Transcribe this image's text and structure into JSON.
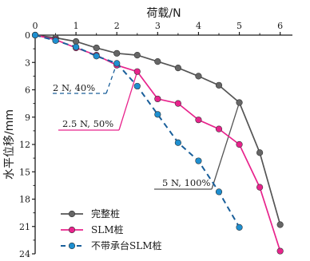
{
  "chart_data": {
    "type": "line",
    "xlabel": "荷载/N",
    "ylabel": "水平位移/mm",
    "x_axis_position": "top",
    "y_inverted": true,
    "xlim": [
      0,
      6.3
    ],
    "ylim": [
      0,
      24
    ],
    "x_ticks": [
      "0",
      "1",
      "2",
      "3",
      "4",
      "5",
      "6"
    ],
    "y_ticks": [
      "0",
      "3",
      "6",
      "9",
      "12",
      "15",
      "18",
      "21",
      "24"
    ],
    "grid": false,
    "legend_position": "bottom-left",
    "series": [
      {
        "name": "完整桩",
        "color": "#555555",
        "line_style": "solid",
        "marker_color": "#666666",
        "x": [
          0,
          0.5,
          1.0,
          1.5,
          2.0,
          2.5,
          3.0,
          3.5,
          4.0,
          4.5,
          5.0,
          5.5,
          6.0
        ],
        "y": [
          0,
          0.3,
          0.7,
          1.4,
          2.0,
          2.2,
          2.9,
          3.6,
          4.5,
          5.5,
          7.4,
          12.9,
          20.8
        ]
      },
      {
        "name": "SLM桩",
        "color": "#e8238c",
        "line_style": "solid",
        "marker_color": "#e8238c",
        "x": [
          0,
          0.5,
          1.0,
          1.5,
          2.0,
          2.5,
          3.0,
          3.5,
          4.0,
          4.5,
          5.0,
          5.5,
          6.0
        ],
        "y": [
          0,
          0.5,
          1.4,
          2.2,
          3.3,
          4.0,
          7.0,
          7.5,
          9.3,
          10.3,
          12.0,
          16.7,
          23.7
        ]
      },
      {
        "name": "不带承台SLM桩",
        "color": "#1a5f9a",
        "line_style": "dashed",
        "marker_color": "#1e8fd0",
        "x": [
          0,
          0.5,
          1.0,
          1.5,
          2.0,
          2.5,
          3.0,
          3.5,
          4.0,
          4.5,
          5.0
        ],
        "y": [
          0,
          0.6,
          1.3,
          2.3,
          3.1,
          5.6,
          8.7,
          11.8,
          13.8,
          17.2,
          21.1
        ]
      }
    ],
    "annotations": [
      {
        "text": "2 N, 40%",
        "point": [
          2.0,
          3.1
        ],
        "color": "#1a5f9a",
        "line_style": "dashed"
      },
      {
        "text": "2.5 N, 50%",
        "point": [
          2.5,
          4.0
        ],
        "color": "#e8238c",
        "line_style": "solid"
      },
      {
        "text": "5 N, 100%",
        "point": [
          5.0,
          7.4
        ],
        "color": "#555555",
        "line_style": "solid"
      }
    ]
  }
}
